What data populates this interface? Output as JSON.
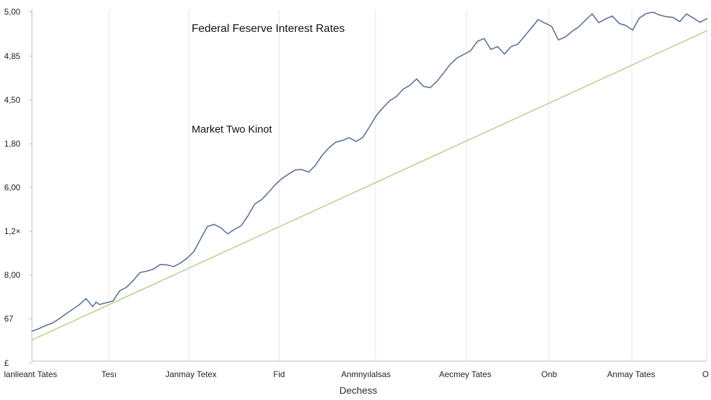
{
  "chart_data": {
    "type": "line",
    "title": "Federal Feserve Interest Rates",
    "annotation": "Market Two Kinot",
    "xlabel": "Dechess",
    "ylabel": "",
    "y_tick_labels": [
      "5,00",
      "4,85",
      "4,50",
      "1,80",
      "6,00",
      "1,2×",
      "8,00",
      "67",
      "£"
    ],
    "x_tick_labels": [
      "lanlieant Tates",
      "Tesı",
      "Janmay Tetex",
      "Fid",
      "Anmnyılalsas",
      "Aecmey Tates",
      "Onb",
      "Anmay Tates",
      "O"
    ],
    "x_range": [
      0,
      100
    ],
    "y_range": [
      0,
      100
    ],
    "grid": "vertical",
    "series": [
      {
        "color": "#5b6f93",
        "x": [
          0,
          1,
          2,
          3,
          4,
          5,
          6,
          7,
          8,
          9,
          9.5,
          10,
          11,
          12,
          13,
          14,
          15,
          16,
          17,
          18,
          19,
          20,
          21,
          22,
          23,
          24,
          25,
          26,
          27,
          28,
          29,
          30,
          31,
          32,
          33,
          34,
          35,
          36,
          37,
          38,
          39,
          40,
          41,
          42,
          43,
          44,
          45,
          46,
          47,
          48,
          49,
          50,
          51,
          52,
          53,
          54,
          55,
          56,
          57,
          58,
          59,
          60,
          61,
          62,
          63,
          64,
          65,
          66,
          67,
          68,
          69,
          70,
          71,
          72,
          73,
          74,
          75,
          76,
          77,
          78,
          79,
          80,
          81,
          82,
          83,
          84,
          85,
          86,
          87,
          88,
          89,
          90,
          91,
          92,
          93,
          94,
          95,
          96,
          96.5,
          97,
          98,
          99,
          100
        ],
        "y": [
          8.5,
          9.2,
          10.1,
          10.8,
          12,
          13.4,
          14.7,
          16,
          17.8,
          15.5,
          16.8,
          16.1,
          16.6,
          17.1,
          20,
          21,
          22.9,
          25.2,
          25.6,
          26.2,
          27.5,
          27.4,
          26.9,
          27.9,
          29.3,
          31.2,
          34.8,
          38.3,
          38.9,
          37.9,
          36.2,
          37.5,
          38.5,
          41.3,
          44.7,
          45.9,
          47.9,
          50.1,
          51.9,
          53.2,
          54.4,
          54.5,
          53.8,
          55.7,
          58.6,
          60.7,
          62.3,
          62.8,
          63.6,
          62.5,
          63.6,
          66.6,
          69.8,
          72.1,
          74.1,
          75.3,
          77.4,
          78.5,
          80.3,
          78.2,
          77.8,
          79.6,
          82,
          84.5,
          86.3,
          87.3,
          88.3,
          91,
          91.8,
          88.7,
          89.5,
          87.4,
          89.5,
          90.2,
          92.5,
          94.8,
          97.2,
          96.2,
          95.3,
          91.4,
          92.2,
          93.8,
          95.1,
          97,
          98.8,
          96.3,
          97.4,
          98.2,
          96.1,
          95.5,
          94.2,
          97.6,
          98.9,
          99.3,
          98.5,
          98,
          97.8,
          96.6,
          97.8,
          98.8,
          97.6,
          96.4,
          97.5
        ]
      },
      {
        "color": "#b5d08b",
        "x": [
          0,
          100
        ],
        "y": [
          6,
          94
        ]
      }
    ]
  }
}
